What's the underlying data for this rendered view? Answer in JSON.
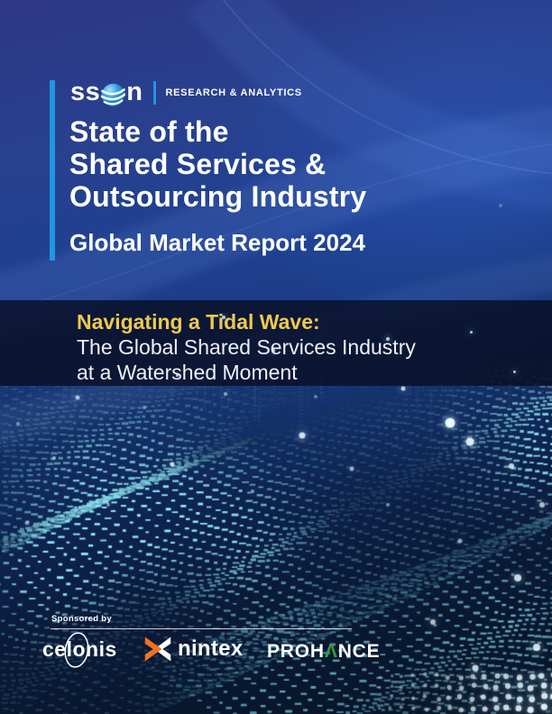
{
  "cover": {
    "logo": {
      "word_prefix": "ss",
      "word_suffix": "n",
      "division": "RESEARCH & ANALYTICS"
    },
    "title": {
      "line1": "State of the",
      "line2": "Shared Services &",
      "line3": "Outsourcing Industry"
    },
    "subtitle": "Global Market Report 2024",
    "banner": {
      "highlight": "Navigating a Tidal Wave:",
      "line1": "The Global Shared Services Industry",
      "line2": "at a Watershed Moment"
    },
    "sponsors": {
      "label": "Sponsored by",
      "celonis": "celonis",
      "nintex": "nintex",
      "prohance_p1": "PROH",
      "prohance_mid": "Λ",
      "prohance_p2": "NCE"
    },
    "colors": {
      "accent_blue": "#2196e0",
      "highlight_yellow": "#eec94f",
      "nintex_orange": "#f4701f",
      "prohance_green": "#3a9a3e",
      "wave_cyan": "#5fd9ef",
      "bg_top": "#2c3786",
      "bg_bottom": "#081425"
    }
  }
}
